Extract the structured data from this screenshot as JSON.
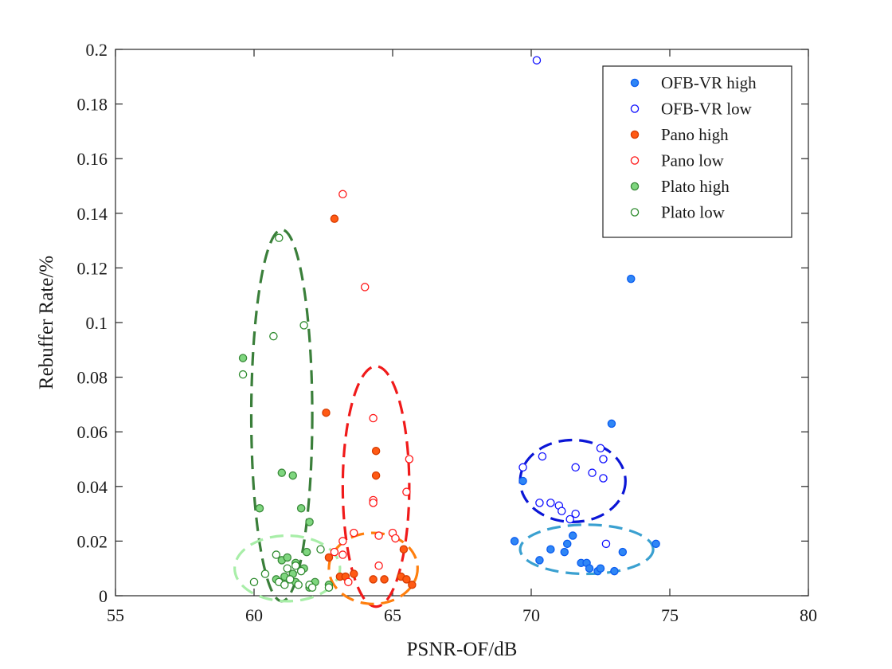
{
  "chart_data": {
    "type": "scatter",
    "title": "",
    "xlabel": "PSNR-OF/dB",
    "ylabel": "Rebuffer Rate/%",
    "xlim": [
      55,
      80
    ],
    "ylim": [
      0,
      0.2
    ],
    "xticks": [
      "55",
      "60",
      "65",
      "70",
      "75",
      "80"
    ],
    "yticks": [
      "0",
      "0.02",
      "0.04",
      "0.06",
      "0.08",
      "0.1",
      "0.12",
      "0.14",
      "0.16",
      "0.18",
      "0.2"
    ],
    "grid": false,
    "legend_position": "top-right",
    "series": [
      {
        "name": "OFB-VR high",
        "marker": "filled",
        "color": "#0b5cf0",
        "fill": "#2f86f5",
        "points": [
          [
            73.6,
            0.116
          ],
          [
            72.9,
            0.063
          ],
          [
            69.4,
            0.02
          ],
          [
            70.3,
            0.013
          ],
          [
            70.7,
            0.017
          ],
          [
            71.2,
            0.016
          ],
          [
            71.3,
            0.019
          ],
          [
            71.5,
            0.022
          ],
          [
            71.8,
            0.012
          ],
          [
            72.0,
            0.012
          ],
          [
            72.1,
            0.01
          ],
          [
            72.4,
            0.009
          ],
          [
            72.5,
            0.01
          ],
          [
            73.0,
            0.009
          ],
          [
            73.3,
            0.016
          ],
          [
            74.5,
            0.019
          ],
          [
            69.7,
            0.042
          ]
        ]
      },
      {
        "name": "OFB-VR low",
        "marker": "open",
        "color": "#1010ff",
        "points": [
          [
            70.2,
            0.196
          ],
          [
            70.4,
            0.051
          ],
          [
            72.5,
            0.054
          ],
          [
            72.6,
            0.05
          ],
          [
            69.7,
            0.047
          ],
          [
            71.6,
            0.047
          ],
          [
            72.2,
            0.045
          ],
          [
            72.6,
            0.043
          ],
          [
            70.3,
            0.034
          ],
          [
            70.7,
            0.034
          ],
          [
            71.0,
            0.033
          ],
          [
            71.1,
            0.031
          ],
          [
            71.4,
            0.028
          ],
          [
            71.6,
            0.03
          ],
          [
            72.7,
            0.019
          ]
        ]
      },
      {
        "name": "Pano high",
        "marker": "filled",
        "color": "#d63b00",
        "fill": "#ff5a14",
        "points": [
          [
            62.9,
            0.138
          ],
          [
            62.6,
            0.067
          ],
          [
            64.4,
            0.053
          ],
          [
            64.4,
            0.044
          ],
          [
            62.7,
            0.014
          ],
          [
            63.1,
            0.007
          ],
          [
            63.3,
            0.007
          ],
          [
            63.6,
            0.008
          ],
          [
            64.3,
            0.006
          ],
          [
            64.7,
            0.006
          ],
          [
            65.3,
            0.007
          ],
          [
            65.4,
            0.017
          ],
          [
            65.5,
            0.006
          ],
          [
            65.7,
            0.004
          ]
        ]
      },
      {
        "name": "Pano low",
        "marker": "open",
        "color": "#ff1a1a",
        "points": [
          [
            63.2,
            0.147
          ],
          [
            64.0,
            0.113
          ],
          [
            64.3,
            0.065
          ],
          [
            65.6,
            0.05
          ],
          [
            65.5,
            0.038
          ],
          [
            64.3,
            0.035
          ],
          [
            64.3,
            0.034
          ],
          [
            63.6,
            0.023
          ],
          [
            64.5,
            0.022
          ],
          [
            65.0,
            0.023
          ],
          [
            65.1,
            0.021
          ],
          [
            63.2,
            0.02
          ],
          [
            62.9,
            0.016
          ],
          [
            63.2,
            0.015
          ],
          [
            64.5,
            0.011
          ],
          [
            63.4,
            0.005
          ]
        ]
      },
      {
        "name": "Plato high",
        "marker": "filled",
        "color": "#3a8a3a",
        "fill": "#7fd67f",
        "points": [
          [
            59.6,
            0.087
          ],
          [
            60.2,
            0.032
          ],
          [
            61.7,
            0.032
          ],
          [
            62.0,
            0.027
          ],
          [
            61.0,
            0.045
          ],
          [
            61.4,
            0.044
          ],
          [
            61.0,
            0.013
          ],
          [
            61.2,
            0.014
          ],
          [
            61.5,
            0.012
          ],
          [
            61.9,
            0.016
          ],
          [
            60.8,
            0.006
          ],
          [
            61.1,
            0.007
          ],
          [
            61.3,
            0.006
          ],
          [
            61.5,
            0.005
          ],
          [
            61.8,
            0.01
          ],
          [
            62.0,
            0.003
          ],
          [
            62.2,
            0.005
          ],
          [
            62.7,
            0.004
          ],
          [
            61.4,
            0.008
          ]
        ]
      },
      {
        "name": "Plato low",
        "marker": "open",
        "color": "#2e8b2e",
        "points": [
          [
            60.9,
            0.131
          ],
          [
            60.7,
            0.095
          ],
          [
            61.8,
            0.099
          ],
          [
            59.6,
            0.081
          ],
          [
            60.8,
            0.015
          ],
          [
            61.2,
            0.01
          ],
          [
            61.5,
            0.011
          ],
          [
            61.7,
            0.009
          ],
          [
            62.4,
            0.017
          ],
          [
            60.4,
            0.008
          ],
          [
            60.0,
            0.005
          ],
          [
            60.9,
            0.005
          ],
          [
            61.1,
            0.004
          ],
          [
            61.3,
            0.006
          ],
          [
            61.6,
            0.004
          ],
          [
            62.0,
            0.004
          ],
          [
            62.1,
            0.003
          ],
          [
            62.7,
            0.003
          ]
        ]
      }
    ],
    "ellipses": [
      {
        "color": "#3a7f3a",
        "center": [
          61.0,
          0.066
        ],
        "radius": [
          1.1,
          0.068
        ]
      },
      {
        "color": "#a8eea8",
        "center": [
          61.2,
          0.01
        ],
        "radius": [
          1.9,
          0.012
        ]
      },
      {
        "color": "#f01a1a",
        "center": [
          64.4,
          0.04
        ],
        "radius": [
          1.2,
          0.044
        ]
      },
      {
        "color": "#ff7f0e",
        "center": [
          64.3,
          0.01
        ],
        "radius": [
          1.6,
          0.013
        ]
      },
      {
        "color": "#0b16d6",
        "center": [
          71.5,
          0.042
        ],
        "radius": [
          1.9,
          0.015
        ]
      },
      {
        "color": "#3aa0d0",
        "center": [
          72.0,
          0.017
        ],
        "radius": [
          2.4,
          0.009
        ]
      }
    ]
  }
}
